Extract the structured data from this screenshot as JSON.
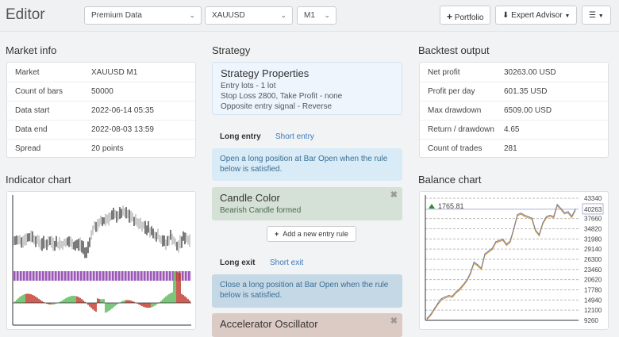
{
  "header": {
    "title": "Editor",
    "data_source": "Premium Data",
    "symbol": "XAUUSD",
    "period": "M1",
    "portfolio": "Portfolio",
    "expert_advisor": "Expert Advisor",
    "menu": "menu"
  },
  "market_info": {
    "title": "Market info",
    "rows": [
      {
        "k": "Market",
        "v": "XAUUSD M1"
      },
      {
        "k": "Count of bars",
        "v": "50000"
      },
      {
        "k": "Data start",
        "v": "2022-06-14 05:35"
      },
      {
        "k": "Data end",
        "v": "2022-08-03 13:59"
      },
      {
        "k": "Spread",
        "v": "20 points"
      }
    ]
  },
  "indicator_chart": {
    "title": "Indicator chart",
    "colors": {
      "price": "#222222",
      "band": "#9b59b6",
      "up": "#5cb85c",
      "down": "#c0392b"
    }
  },
  "strategy": {
    "title": "Strategy",
    "props_title": "Strategy Properties",
    "props": [
      "Entry lots - 1 lot",
      "Stop Loss 2800, Take Profit - none",
      "Opposite entry signal - Reverse"
    ],
    "entry_tabs": [
      "Long entry",
      "Short entry"
    ],
    "entry_info": "Open a long position at Bar Open when the rule below is satisfied.",
    "entry_rule": {
      "title": "Candle Color",
      "desc": "Bearish Candle formed"
    },
    "add_entry": "Add a new entry rule",
    "exit_tabs": [
      "Long exit",
      "Short exit"
    ],
    "exit_info": "Close a long position at Bar Open when the rule below is satisfied.",
    "exit_rule": {
      "title": "Accelerator Oscillator"
    }
  },
  "backtest": {
    "title": "Backtest output",
    "rows": [
      {
        "k": "Net profit",
        "v": "30263.00 USD"
      },
      {
        "k": "Profit per day",
        "v": "601.35 USD"
      },
      {
        "k": "Max drawdown",
        "v": "6509.00 USD"
      },
      {
        "k": "Return / drawdown",
        "v": "4.65"
      },
      {
        "k": "Count of trades",
        "v": "281"
      }
    ]
  },
  "balance_chart": {
    "title": "Balance chart",
    "badge": "1765.81",
    "last_value": "40263",
    "chart_data": {
      "type": "line",
      "ylim": [
        9260,
        43340
      ],
      "yticks": [
        "43340",
        "40263",
        "37660",
        "34820",
        "31980",
        "29140",
        "26300",
        "23460",
        "20620",
        "17780",
        "14940",
        "12100",
        "9260"
      ],
      "values": [
        9800,
        10900,
        12500,
        14000,
        15300,
        15800,
        16200,
        16000,
        17200,
        18000,
        19200,
        20500,
        22500,
        25500,
        24800,
        23800,
        27800,
        28600,
        29300,
        31200,
        31600,
        31900,
        30500,
        31400,
        35000,
        38800,
        39200,
        38600,
        38200,
        37800,
        34500,
        33200,
        36500,
        38200,
        38600,
        38200,
        41600,
        40500,
        39300,
        39600,
        38300,
        40263
      ],
      "colors": {
        "line": "#e8a040",
        "line2": "#6a7fa8"
      }
    }
  }
}
